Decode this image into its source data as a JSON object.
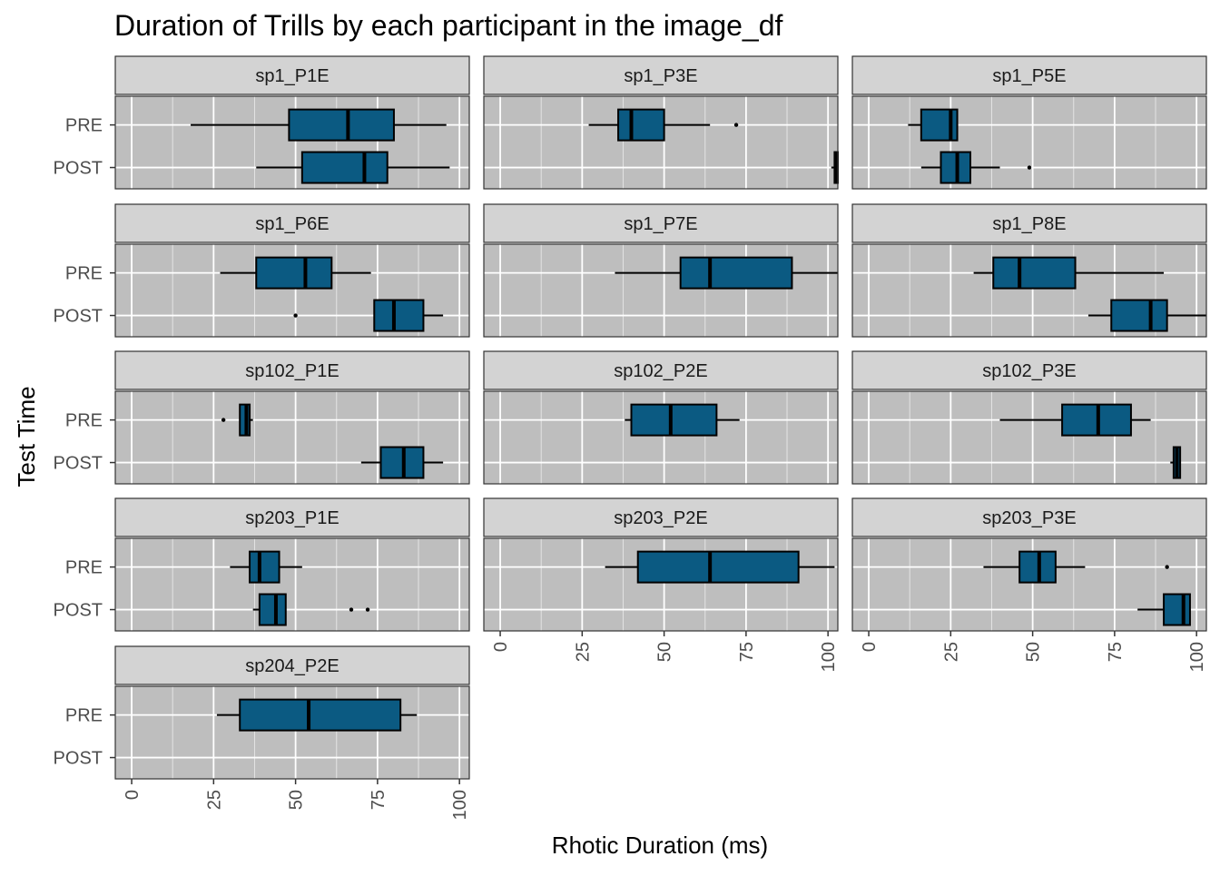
{
  "chart_data": {
    "type": "boxplot",
    "title": "Duration of Trills by each participant in the image_df",
    "xlabel": "Rhotic Duration (ms)",
    "ylabel": "Test Time",
    "xlim": [
      -5,
      103
    ],
    "x_ticks": [
      0,
      25,
      50,
      75,
      100
    ],
    "categories": [
      "PRE",
      "POST"
    ],
    "fill_color": "#0b5a82",
    "panel_bg": "#bebebe",
    "strip_bg": "#d3d3d3",
    "grid": true,
    "legend": "none",
    "facets": [
      {
        "name": "sp1_P1E",
        "boxes": [
          {
            "cat": "PRE",
            "min": 18,
            "q1": 48,
            "median": 66,
            "q3": 80,
            "max": 96,
            "outliers": []
          },
          {
            "cat": "POST",
            "min": 38,
            "q1": 52,
            "median": 71,
            "q3": 78,
            "max": 97,
            "outliers": []
          }
        ]
      },
      {
        "name": "sp1_P3E",
        "boxes": [
          {
            "cat": "PRE",
            "min": 27,
            "q1": 36,
            "median": 40,
            "q3": 50,
            "max": 64,
            "outliers": [
              72
            ]
          },
          {
            "cat": "POST",
            "min": 101,
            "q1": 102,
            "median": 102.5,
            "q3": 103,
            "max": 103,
            "outliers": []
          }
        ]
      },
      {
        "name": "sp1_P5E",
        "boxes": [
          {
            "cat": "PRE",
            "min": 12,
            "q1": 16,
            "median": 25,
            "q3": 27,
            "max": 27,
            "outliers": []
          },
          {
            "cat": "POST",
            "min": 16,
            "q1": 22,
            "median": 27,
            "q3": 31,
            "max": 40,
            "outliers": [
              49
            ]
          }
        ]
      },
      {
        "name": "sp1_P6E",
        "boxes": [
          {
            "cat": "PRE",
            "min": 27,
            "q1": 38,
            "median": 53,
            "q3": 61,
            "max": 73,
            "outliers": []
          },
          {
            "cat": "POST",
            "min": 74,
            "q1": 74,
            "median": 80,
            "q3": 89,
            "max": 95,
            "outliers": [
              50
            ]
          }
        ]
      },
      {
        "name": "sp1_P7E",
        "boxes": [
          {
            "cat": "PRE",
            "min": 35,
            "q1": 55,
            "median": 64,
            "q3": 89,
            "max": 103,
            "outliers": []
          },
          {
            "cat": "POST",
            "min": null,
            "q1": null,
            "median": null,
            "q3": null,
            "max": null,
            "outliers": []
          }
        ]
      },
      {
        "name": "sp1_P8E",
        "boxes": [
          {
            "cat": "PRE",
            "min": 32,
            "q1": 38,
            "median": 46,
            "q3": 63,
            "max": 90,
            "outliers": []
          },
          {
            "cat": "POST",
            "min": 67,
            "q1": 74,
            "median": 86,
            "q3": 91,
            "max": 103,
            "outliers": []
          }
        ]
      },
      {
        "name": "sp102_P1E",
        "boxes": [
          {
            "cat": "PRE",
            "min": 33,
            "q1": 33,
            "median": 35,
            "q3": 36,
            "max": 37,
            "outliers": [
              28
            ]
          },
          {
            "cat": "POST",
            "min": 70,
            "q1": 76,
            "median": 83,
            "q3": 89,
            "max": 95,
            "outliers": []
          }
        ]
      },
      {
        "name": "sp102_P2E",
        "boxes": [
          {
            "cat": "PRE",
            "min": 38,
            "q1": 40,
            "median": 52,
            "q3": 66,
            "max": 73,
            "outliers": []
          },
          {
            "cat": "POST",
            "min": null,
            "q1": null,
            "median": null,
            "q3": null,
            "max": null,
            "outliers": []
          }
        ]
      },
      {
        "name": "sp102_P3E",
        "boxes": [
          {
            "cat": "PRE",
            "min": 40,
            "q1": 59,
            "median": 70,
            "q3": 80,
            "max": 86,
            "outliers": []
          },
          {
            "cat": "POST",
            "min": 92,
            "q1": 93,
            "median": 94,
            "q3": 95,
            "max": 95,
            "outliers": []
          }
        ]
      },
      {
        "name": "sp203_P1E",
        "boxes": [
          {
            "cat": "PRE",
            "min": 30,
            "q1": 36,
            "median": 39,
            "q3": 45,
            "max": 52,
            "outliers": []
          },
          {
            "cat": "POST",
            "min": 37,
            "q1": 39,
            "median": 44,
            "q3": 47,
            "max": 47,
            "outliers": [
              67,
              72
            ]
          }
        ]
      },
      {
        "name": "sp203_P2E",
        "boxes": [
          {
            "cat": "PRE",
            "min": 32,
            "q1": 42,
            "median": 64,
            "q3": 91,
            "max": 102,
            "outliers": []
          },
          {
            "cat": "POST",
            "min": null,
            "q1": null,
            "median": null,
            "q3": null,
            "max": null,
            "outliers": []
          }
        ]
      },
      {
        "name": "sp203_P3E",
        "boxes": [
          {
            "cat": "PRE",
            "min": 35,
            "q1": 46,
            "median": 52,
            "q3": 57,
            "max": 66,
            "outliers": [
              91
            ]
          },
          {
            "cat": "POST",
            "min": 82,
            "q1": 90,
            "median": 96,
            "q3": 98,
            "max": 98,
            "outliers": []
          }
        ]
      },
      {
        "name": "sp204_P2E",
        "boxes": [
          {
            "cat": "PRE",
            "min": 26,
            "q1": 33,
            "median": 54,
            "q3": 82,
            "max": 87,
            "outliers": []
          },
          {
            "cat": "POST",
            "min": null,
            "q1": null,
            "median": null,
            "q3": null,
            "max": null,
            "outliers": []
          }
        ]
      }
    ]
  }
}
